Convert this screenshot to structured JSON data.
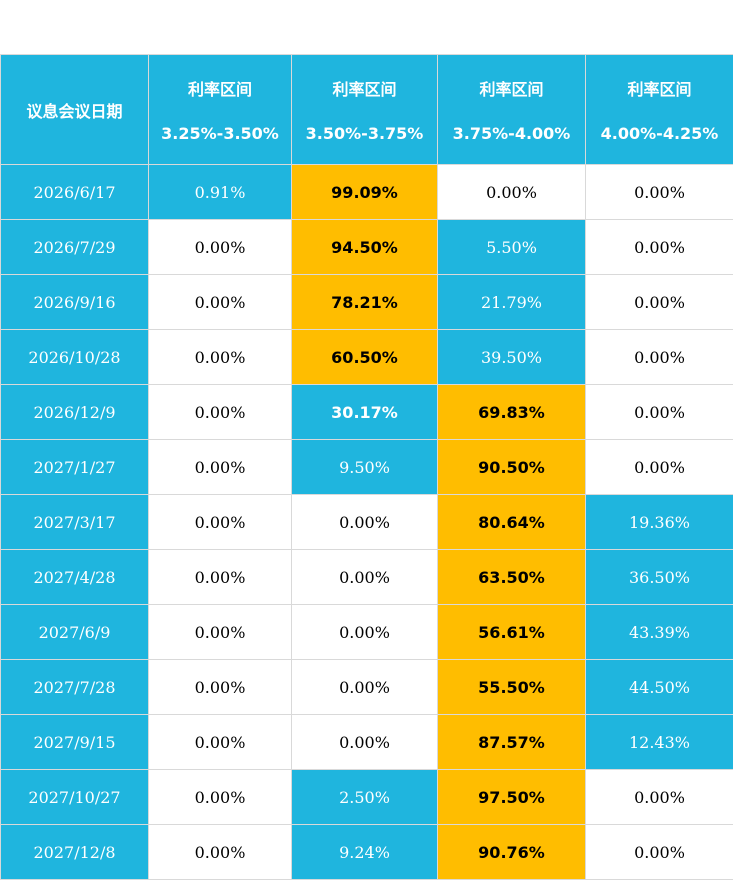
{
  "colors": {
    "header_bg": "#1fb5de",
    "highlight_max": "#ffbd00",
    "highlight_secondary": "#1fb5de",
    "default_bg": "#ffffff"
  },
  "chart_data": {
    "type": "table",
    "header": {
      "first": "议息会议日期",
      "ranges": [
        {
          "label": "利率区间",
          "range": "3.25%-3.50%"
        },
        {
          "label": "利率区间",
          "range": "3.50%-3.75%"
        },
        {
          "label": "利率区间",
          "range": "3.75%-4.00%"
        },
        {
          "label": "利率区间",
          "range": "4.00%-4.25%"
        }
      ]
    },
    "rows": [
      {
        "date": "2026/6/17",
        "cells": [
          {
            "v": "0.91%",
            "s": "blue"
          },
          {
            "v": "99.09%",
            "s": "gold"
          },
          {
            "v": "0.00%",
            "s": ""
          },
          {
            "v": "0.00%",
            "s": ""
          }
        ]
      },
      {
        "date": "2026/7/29",
        "cells": [
          {
            "v": "0.00%",
            "s": ""
          },
          {
            "v": "94.50%",
            "s": "gold"
          },
          {
            "v": "5.50%",
            "s": "blue"
          },
          {
            "v": "0.00%",
            "s": ""
          }
        ]
      },
      {
        "date": "2026/9/16",
        "cells": [
          {
            "v": "0.00%",
            "s": ""
          },
          {
            "v": "78.21%",
            "s": "gold"
          },
          {
            "v": "21.79%",
            "s": "blue"
          },
          {
            "v": "0.00%",
            "s": ""
          }
        ]
      },
      {
        "date": "2026/10/28",
        "cells": [
          {
            "v": "0.00%",
            "s": ""
          },
          {
            "v": "60.50%",
            "s": "gold"
          },
          {
            "v": "39.50%",
            "s": "blue"
          },
          {
            "v": "0.00%",
            "s": ""
          }
        ]
      },
      {
        "date": "2026/12/9",
        "cells": [
          {
            "v": "0.00%",
            "s": ""
          },
          {
            "v": "30.17%",
            "s": "blue bold"
          },
          {
            "v": "69.83%",
            "s": "gold"
          },
          {
            "v": "0.00%",
            "s": ""
          }
        ]
      },
      {
        "date": "2027/1/27",
        "cells": [
          {
            "v": "0.00%",
            "s": ""
          },
          {
            "v": "9.50%",
            "s": "blue"
          },
          {
            "v": "90.50%",
            "s": "gold"
          },
          {
            "v": "0.00%",
            "s": ""
          }
        ]
      },
      {
        "date": "2027/3/17",
        "cells": [
          {
            "v": "0.00%",
            "s": ""
          },
          {
            "v": "0.00%",
            "s": ""
          },
          {
            "v": "80.64%",
            "s": "gold"
          },
          {
            "v": "19.36%",
            "s": "blue"
          }
        ]
      },
      {
        "date": "2027/4/28",
        "cells": [
          {
            "v": "0.00%",
            "s": ""
          },
          {
            "v": "0.00%",
            "s": ""
          },
          {
            "v": "63.50%",
            "s": "gold"
          },
          {
            "v": "36.50%",
            "s": "blue"
          }
        ]
      },
      {
        "date": "2027/6/9",
        "cells": [
          {
            "v": "0.00%",
            "s": ""
          },
          {
            "v": "0.00%",
            "s": ""
          },
          {
            "v": "56.61%",
            "s": "gold"
          },
          {
            "v": "43.39%",
            "s": "blue"
          }
        ]
      },
      {
        "date": "2027/7/28",
        "cells": [
          {
            "v": "0.00%",
            "s": ""
          },
          {
            "v": "0.00%",
            "s": ""
          },
          {
            "v": "55.50%",
            "s": "gold"
          },
          {
            "v": "44.50%",
            "s": "blue"
          }
        ]
      },
      {
        "date": "2027/9/15",
        "cells": [
          {
            "v": "0.00%",
            "s": ""
          },
          {
            "v": "0.00%",
            "s": ""
          },
          {
            "v": "87.57%",
            "s": "gold"
          },
          {
            "v": "12.43%",
            "s": "blue"
          }
        ]
      },
      {
        "date": "2027/10/27",
        "cells": [
          {
            "v": "0.00%",
            "s": ""
          },
          {
            "v": "2.50%",
            "s": "blue"
          },
          {
            "v": "97.50%",
            "s": "gold"
          },
          {
            "v": "0.00%",
            "s": ""
          }
        ]
      },
      {
        "date": "2027/12/8",
        "cells": [
          {
            "v": "0.00%",
            "s": ""
          },
          {
            "v": "9.24%",
            "s": "blue"
          },
          {
            "v": "90.76%",
            "s": "gold"
          },
          {
            "v": "0.00%",
            "s": ""
          }
        ]
      }
    ]
  }
}
